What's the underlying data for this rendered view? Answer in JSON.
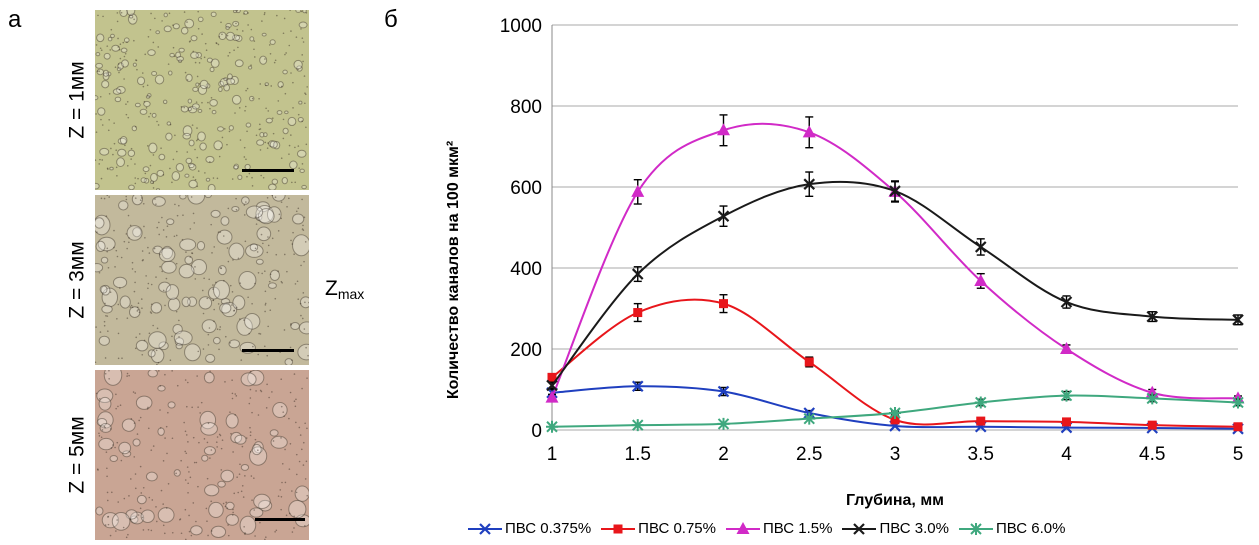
{
  "panel_a": {
    "letter": "а",
    "images": [
      {
        "label": "Z = 1мм",
        "tone": "#c2c38e"
      },
      {
        "label": "Z = 3мм",
        "tone": "#c2b99c"
      },
      {
        "label": "Z = 5мм",
        "tone": "#c9a594"
      }
    ],
    "zmax_main": "Z",
    "zmax_sub": "max"
  },
  "panel_b": {
    "letter": "б"
  },
  "chart_data": {
    "type": "line",
    "xlabel": "Глубина, мм",
    "ylabel": "Количество каналов на 100 мкм²",
    "xlim": [
      1,
      5
    ],
    "ylim": [
      0,
      1000
    ],
    "x_ticks": [
      "1",
      "1.5",
      "2",
      "2.5",
      "3",
      "3.5",
      "4",
      "4.5",
      "5"
    ],
    "y_ticks": [
      "0",
      "200",
      "400",
      "600",
      "800",
      "1000"
    ],
    "grid": "horizontal",
    "legend": "bottom",
    "x": [
      1,
      1.5,
      2,
      2.5,
      3,
      3.5,
      4,
      4.5,
      5
    ],
    "series": [
      {
        "name": "ПВС 0.375%",
        "color": "#1f3fbf",
        "marker": "x",
        "values": [
          92,
          108,
          95,
          42,
          10,
          8,
          6,
          5,
          3
        ],
        "errors": [
          8,
          10,
          10,
          6,
          0,
          0,
          0,
          0,
          0
        ]
      },
      {
        "name": "ПВС 0.75%",
        "color": "#e8161b",
        "marker": "square",
        "values": [
          130,
          290,
          312,
          168,
          25,
          22,
          20,
          12,
          8
        ],
        "errors": [
          8,
          22,
          22,
          12,
          0,
          0,
          0,
          0,
          0
        ]
      },
      {
        "name": "ПВС 1.5%",
        "color": "#d12ac7",
        "marker": "triangle",
        "values": [
          80,
          588,
          740,
          735,
          588,
          368,
          200,
          92,
          78
        ],
        "errors": [
          8,
          30,
          38,
          38,
          25,
          18,
          10,
          8,
          6
        ]
      },
      {
        "name": "ПВС 3.0%",
        "color": "#1a1a1a",
        "marker": "x",
        "values": [
          110,
          385,
          528,
          607,
          590,
          452,
          316,
          280,
          272
        ],
        "errors": [
          8,
          18,
          25,
          30,
          25,
          20,
          15,
          12,
          12
        ]
      },
      {
        "name": "ПВС 6.0%",
        "color": "#3fa87e",
        "marker": "star",
        "values": [
          8,
          12,
          15,
          28,
          42,
          68,
          85,
          78,
          68
        ],
        "errors": [
          0,
          0,
          0,
          0,
          5,
          8,
          10,
          8,
          8
        ]
      }
    ]
  }
}
